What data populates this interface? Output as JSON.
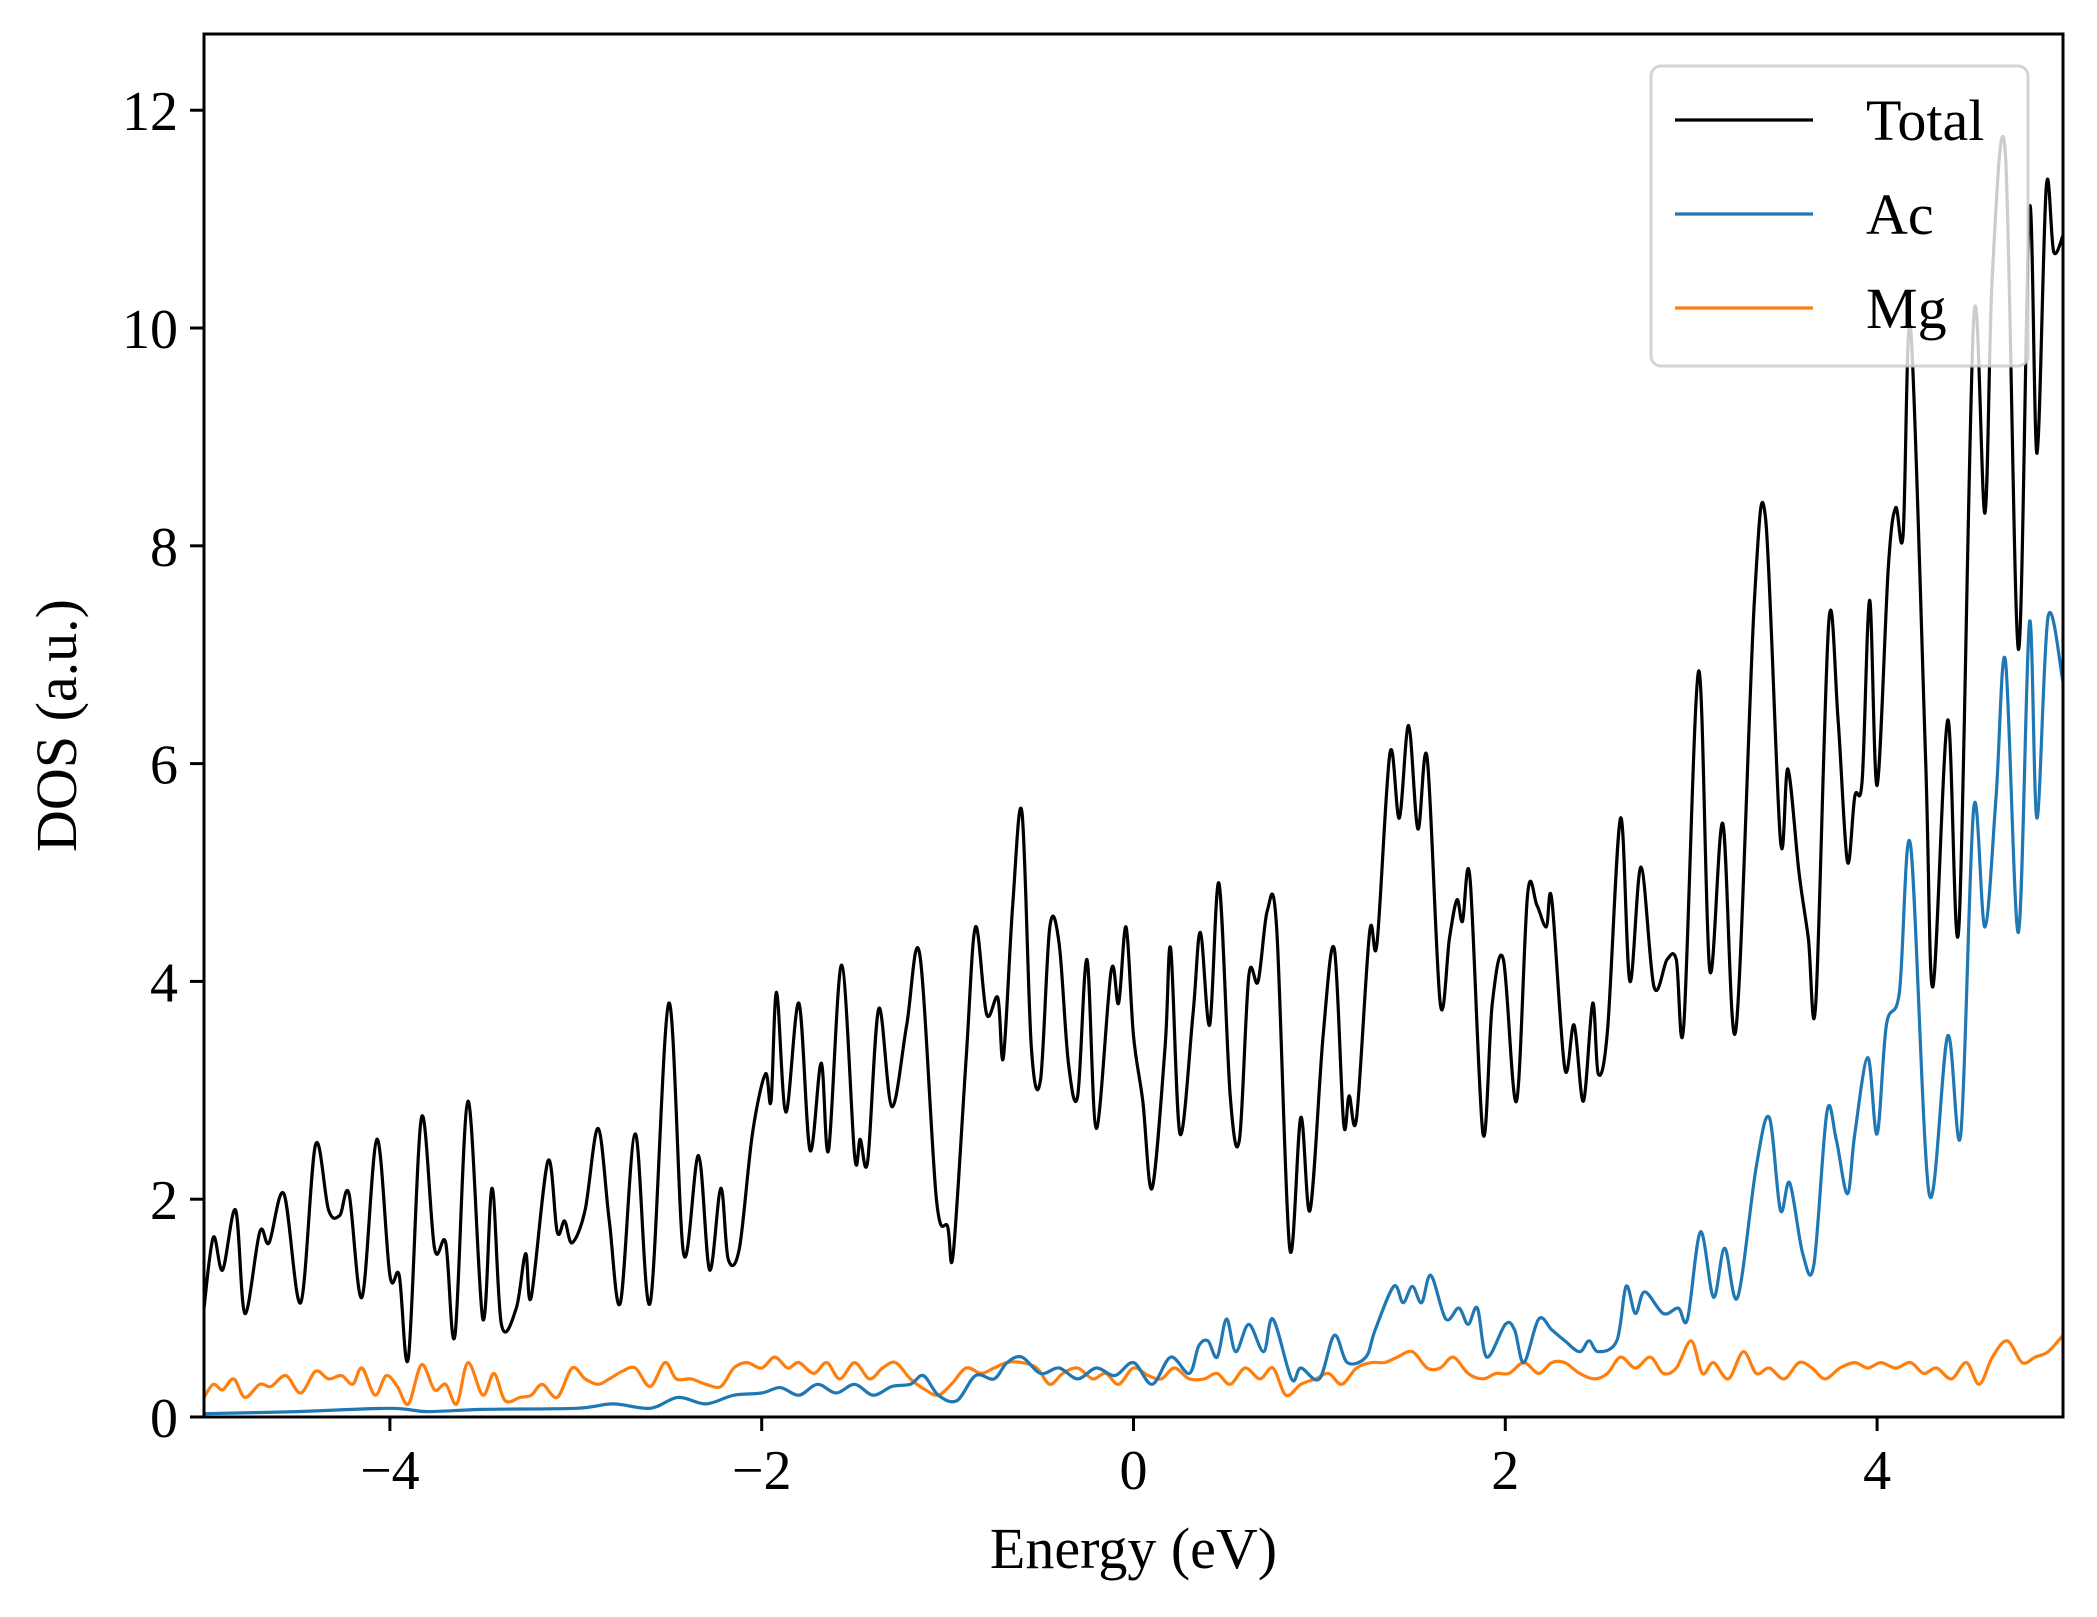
{
  "chart_data": {
    "type": "line",
    "title": "",
    "xlabel": "Energy (eV)",
    "ylabel": "DOS (a.u.)",
    "xlim": [
      -5,
      5
    ],
    "ylim": [
      0,
      12.7
    ],
    "xticks": [
      -4,
      -2,
      0,
      2,
      4
    ],
    "xtick_labels": [
      "−4",
      "−2",
      "0",
      "2",
      "4"
    ],
    "yticks": [
      0,
      2,
      4,
      6,
      8,
      10,
      12
    ],
    "ytick_labels": [
      "0",
      "2",
      "4",
      "6",
      "8",
      "10",
      "12"
    ],
    "grid": false,
    "legend_position": "top-right",
    "series": [
      {
        "name": "Total",
        "color": "#000000",
        "x": [
          -5,
          -4.95,
          -4.9,
          -4.83,
          -4.78,
          -4.7,
          -4.65,
          -4.57,
          -4.48,
          -4.4,
          -4.33,
          -4.27,
          -4.22,
          -4.15,
          -4.07,
          -4.0,
          -3.95,
          -3.9,
          -3.83,
          -3.76,
          -3.7,
          -3.65,
          -3.58,
          -3.5,
          -3.45,
          -3.4,
          -3.32,
          -3.27,
          -3.24,
          -3.15,
          -3.1,
          -3.06,
          -3.02,
          -2.95,
          -2.88,
          -2.82,
          -2.76,
          -2.68,
          -2.6,
          -2.5,
          -2.42,
          -2.34,
          -2.28,
          -2.22,
          -2.18,
          -2.12,
          -2.05,
          -1.98,
          -1.95,
          -1.92,
          -1.87,
          -1.8,
          -1.74,
          -1.68,
          -1.64,
          -1.57,
          -1.5,
          -1.47,
          -1.43,
          -1.37,
          -1.3,
          -1.22,
          -1.15,
          -1.06,
          -1.0,
          -0.97,
          -0.9,
          -0.85,
          -0.79,
          -0.73,
          -0.7,
          -0.65,
          -0.6,
          -0.55,
          -0.5,
          -0.45,
          -0.4,
          -0.35,
          -0.3,
          -0.25,
          -0.2,
          -0.12,
          -0.08,
          -0.04,
          0.0,
          0.05,
          0.1,
          0.17,
          0.2,
          0.25,
          0.32,
          0.36,
          0.41,
          0.46,
          0.52,
          0.57,
          0.62,
          0.67,
          0.72,
          0.77,
          0.84,
          0.9,
          0.95,
          1.02,
          1.08,
          1.13,
          1.16,
          1.2,
          1.27,
          1.31,
          1.38,
          1.43,
          1.48,
          1.53,
          1.58,
          1.65,
          1.7,
          1.74,
          1.77,
          1.81,
          1.88,
          1.93,
          1.99,
          2.06,
          2.12,
          2.17,
          2.22,
          2.25,
          2.32,
          2.37,
          2.42,
          2.47,
          2.5,
          2.55,
          2.62,
          2.67,
          2.73,
          2.8,
          2.87,
          2.92,
          2.96,
          3.04,
          3.1,
          3.17,
          3.24,
          3.34,
          3.4,
          3.48,
          3.52,
          3.58,
          3.63,
          3.67,
          3.74,
          3.79,
          3.84,
          3.88,
          3.92,
          3.96,
          4.0,
          4.06,
          4.1,
          4.14,
          4.18,
          4.26,
          4.3,
          4.38,
          4.44,
          4.52,
          4.58,
          4.62,
          4.69,
          4.76,
          4.82,
          4.86,
          4.91,
          4.95,
          5.0
        ],
        "y": [
          1.0,
          1.65,
          1.35,
          1.9,
          0.95,
          1.7,
          1.6,
          2.05,
          1.05,
          2.5,
          1.9,
          1.85,
          2.05,
          1.1,
          2.55,
          1.3,
          1.3,
          0.55,
          2.75,
          1.55,
          1.6,
          0.75,
          2.9,
          0.9,
          2.1,
          0.85,
          1.0,
          1.5,
          1.1,
          2.35,
          1.7,
          1.8,
          1.6,
          1.9,
          2.65,
          1.8,
          1.05,
          2.6,
          1.05,
          3.8,
          1.5,
          2.4,
          1.35,
          2.1,
          1.45,
          1.55,
          2.6,
          3.15,
          2.9,
          3.9,
          2.8,
          3.8,
          2.45,
          3.25,
          2.45,
          4.15,
          2.4,
          2.55,
          2.35,
          3.75,
          2.85,
          3.6,
          4.25,
          2.0,
          1.75,
          1.5,
          3.3,
          4.5,
          3.7,
          3.85,
          3.3,
          4.7,
          5.55,
          3.4,
          3.1,
          4.5,
          4.35,
          3.25,
          2.95,
          4.2,
          2.65,
          4.1,
          3.8,
          4.5,
          3.5,
          2.9,
          2.1,
          3.4,
          4.3,
          2.6,
          3.7,
          4.45,
          3.6,
          4.9,
          2.95,
          2.55,
          4.05,
          4.0,
          4.65,
          4.5,
          1.55,
          2.75,
          1.9,
          3.5,
          4.3,
          2.7,
          2.95,
          2.75,
          4.45,
          4.35,
          6.1,
          5.5,
          6.35,
          5.4,
          6.05,
          3.8,
          4.4,
          4.75,
          4.55,
          4.95,
          2.6,
          3.8,
          4.2,
          2.9,
          4.8,
          4.7,
          4.5,
          4.75,
          3.2,
          3.6,
          2.9,
          3.8,
          3.15,
          3.55,
          5.5,
          4.0,
          5.05,
          3.95,
          4.2,
          4.2,
          3.6,
          6.85,
          4.1,
          5.45,
          3.55,
          7.5,
          8.25,
          5.3,
          5.95,
          5.0,
          4.4,
          3.8,
          7.3,
          6.4,
          5.1,
          5.7,
          5.85,
          7.5,
          5.8,
          7.8,
          8.35,
          8.1,
          10.0,
          6.1,
          3.95,
          6.4,
          4.5,
          10.1,
          8.3,
          10.5,
          11.6,
          7.05,
          11.1,
          8.85,
          11.3,
          10.7,
          10.85
        ]
      },
      {
        "name": "Ac",
        "color": "#1f77b4",
        "x": [
          -5,
          -4.5,
          -4.0,
          -3.8,
          -3.5,
          -3.0,
          -2.8,
          -2.6,
          -2.45,
          -2.3,
          -2.15,
          -2.0,
          -1.9,
          -1.8,
          -1.7,
          -1.6,
          -1.5,
          -1.4,
          -1.3,
          -1.2,
          -1.13,
          -1.05,
          -0.95,
          -0.85,
          -0.75,
          -0.68,
          -0.6,
          -0.5,
          -0.4,
          -0.3,
          -0.2,
          -0.1,
          0.0,
          0.1,
          0.2,
          0.3,
          0.35,
          0.4,
          0.45,
          0.5,
          0.55,
          0.62,
          0.7,
          0.75,
          0.85,
          0.9,
          1.0,
          1.08,
          1.15,
          1.25,
          1.3,
          1.4,
          1.45,
          1.5,
          1.55,
          1.6,
          1.68,
          1.75,
          1.8,
          1.85,
          1.9,
          2.0,
          2.05,
          2.1,
          2.18,
          2.25,
          2.32,
          2.4,
          2.45,
          2.5,
          2.6,
          2.65,
          2.7,
          2.75,
          2.85,
          2.93,
          2.98,
          3.05,
          3.12,
          3.18,
          3.25,
          3.35,
          3.42,
          3.48,
          3.53,
          3.6,
          3.66,
          3.73,
          3.78,
          3.84,
          3.88,
          3.95,
          4.0,
          4.05,
          4.12,
          4.18,
          4.28,
          4.38,
          4.45,
          4.52,
          4.58,
          4.64,
          4.69,
          4.76,
          4.82,
          4.86,
          4.92,
          5.0
        ],
        "y": [
          0.03,
          0.05,
          0.08,
          0.05,
          0.07,
          0.08,
          0.12,
          0.08,
          0.18,
          0.12,
          0.2,
          0.22,
          0.27,
          0.2,
          0.3,
          0.22,
          0.3,
          0.2,
          0.28,
          0.3,
          0.38,
          0.2,
          0.15,
          0.38,
          0.35,
          0.5,
          0.55,
          0.4,
          0.45,
          0.35,
          0.45,
          0.38,
          0.5,
          0.3,
          0.55,
          0.4,
          0.65,
          0.7,
          0.55,
          0.9,
          0.6,
          0.85,
          0.6,
          0.9,
          0.35,
          0.45,
          0.35,
          0.75,
          0.5,
          0.55,
          0.8,
          1.2,
          1.05,
          1.2,
          1.05,
          1.3,
          0.9,
          1.0,
          0.85,
          1.0,
          0.55,
          0.85,
          0.8,
          0.5,
          0.9,
          0.8,
          0.7,
          0.6,
          0.7,
          0.6,
          0.7,
          1.2,
          0.95,
          1.15,
          0.95,
          1.0,
          0.9,
          1.7,
          1.1,
          1.55,
          1.1,
          2.3,
          2.75,
          1.9,
          2.15,
          1.5,
          1.4,
          2.8,
          2.55,
          2.05,
          2.6,
          3.3,
          2.6,
          3.6,
          3.9,
          5.25,
          2.05,
          3.5,
          2.6,
          5.6,
          4.5,
          5.7,
          6.95,
          4.45,
          7.3,
          5.5,
          7.35,
          6.75
        ]
      },
      {
        "name": "Mg",
        "color": "#ff7f0e",
        "x": [
          -5,
          -4.95,
          -4.9,
          -4.84,
          -4.78,
          -4.7,
          -4.64,
          -4.56,
          -4.48,
          -4.4,
          -4.33,
          -4.26,
          -4.2,
          -4.15,
          -4.08,
          -4.02,
          -3.96,
          -3.9,
          -3.83,
          -3.76,
          -3.7,
          -3.64,
          -3.58,
          -3.5,
          -3.44,
          -3.38,
          -3.3,
          -3.24,
          -3.18,
          -3.1,
          -3.02,
          -2.95,
          -2.88,
          -2.82,
          -2.75,
          -2.68,
          -2.6,
          -2.52,
          -2.46,
          -2.38,
          -2.3,
          -2.22,
          -2.15,
          -2.08,
          -2.0,
          -1.93,
          -1.86,
          -1.8,
          -1.72,
          -1.65,
          -1.58,
          -1.5,
          -1.42,
          -1.35,
          -1.28,
          -1.2,
          -1.12,
          -1.05,
          -0.98,
          -0.9,
          -0.82,
          -0.75,
          -0.68,
          -0.6,
          -0.52,
          -0.45,
          -0.38,
          -0.3,
          -0.22,
          -0.15,
          -0.08,
          0.0,
          0.08,
          0.15,
          0.22,
          0.3,
          0.38,
          0.45,
          0.52,
          0.6,
          0.68,
          0.75,
          0.82,
          0.9,
          0.98,
          1.05,
          1.12,
          1.2,
          1.28,
          1.35,
          1.42,
          1.5,
          1.58,
          1.65,
          1.72,
          1.8,
          1.88,
          1.95,
          2.02,
          2.1,
          2.18,
          2.25,
          2.32,
          2.4,
          2.48,
          2.55,
          2.62,
          2.7,
          2.78,
          2.85,
          2.92,
          3.0,
          3.06,
          3.12,
          3.2,
          3.28,
          3.35,
          3.42,
          3.5,
          3.58,
          3.65,
          3.72,
          3.8,
          3.88,
          3.95,
          4.02,
          4.1,
          4.18,
          4.25,
          4.32,
          4.4,
          4.48,
          4.55,
          4.62,
          4.7,
          4.78,
          4.85,
          4.92,
          5.0
        ],
        "y": [
          0.18,
          0.3,
          0.25,
          0.35,
          0.18,
          0.3,
          0.28,
          0.38,
          0.22,
          0.42,
          0.35,
          0.38,
          0.3,
          0.45,
          0.2,
          0.38,
          0.28,
          0.12,
          0.48,
          0.25,
          0.3,
          0.12,
          0.5,
          0.2,
          0.4,
          0.15,
          0.18,
          0.2,
          0.3,
          0.18,
          0.45,
          0.35,
          0.3,
          0.35,
          0.42,
          0.45,
          0.28,
          0.5,
          0.35,
          0.35,
          0.3,
          0.28,
          0.45,
          0.5,
          0.45,
          0.55,
          0.45,
          0.5,
          0.4,
          0.5,
          0.35,
          0.5,
          0.35,
          0.45,
          0.5,
          0.35,
          0.25,
          0.2,
          0.3,
          0.45,
          0.4,
          0.45,
          0.5,
          0.5,
          0.45,
          0.3,
          0.4,
          0.45,
          0.35,
          0.4,
          0.3,
          0.45,
          0.38,
          0.35,
          0.45,
          0.35,
          0.35,
          0.4,
          0.3,
          0.45,
          0.35,
          0.45,
          0.2,
          0.3,
          0.35,
          0.4,
          0.3,
          0.45,
          0.5,
          0.5,
          0.55,
          0.6,
          0.45,
          0.45,
          0.55,
          0.4,
          0.35,
          0.4,
          0.4,
          0.5,
          0.4,
          0.5,
          0.5,
          0.4,
          0.35,
          0.4,
          0.55,
          0.45,
          0.55,
          0.4,
          0.45,
          0.7,
          0.4,
          0.5,
          0.35,
          0.6,
          0.4,
          0.45,
          0.35,
          0.5,
          0.45,
          0.35,
          0.45,
          0.5,
          0.45,
          0.5,
          0.45,
          0.5,
          0.4,
          0.45,
          0.35,
          0.5,
          0.3,
          0.55,
          0.7,
          0.5,
          0.55,
          0.6,
          0.75
        ]
      }
    ]
  }
}
